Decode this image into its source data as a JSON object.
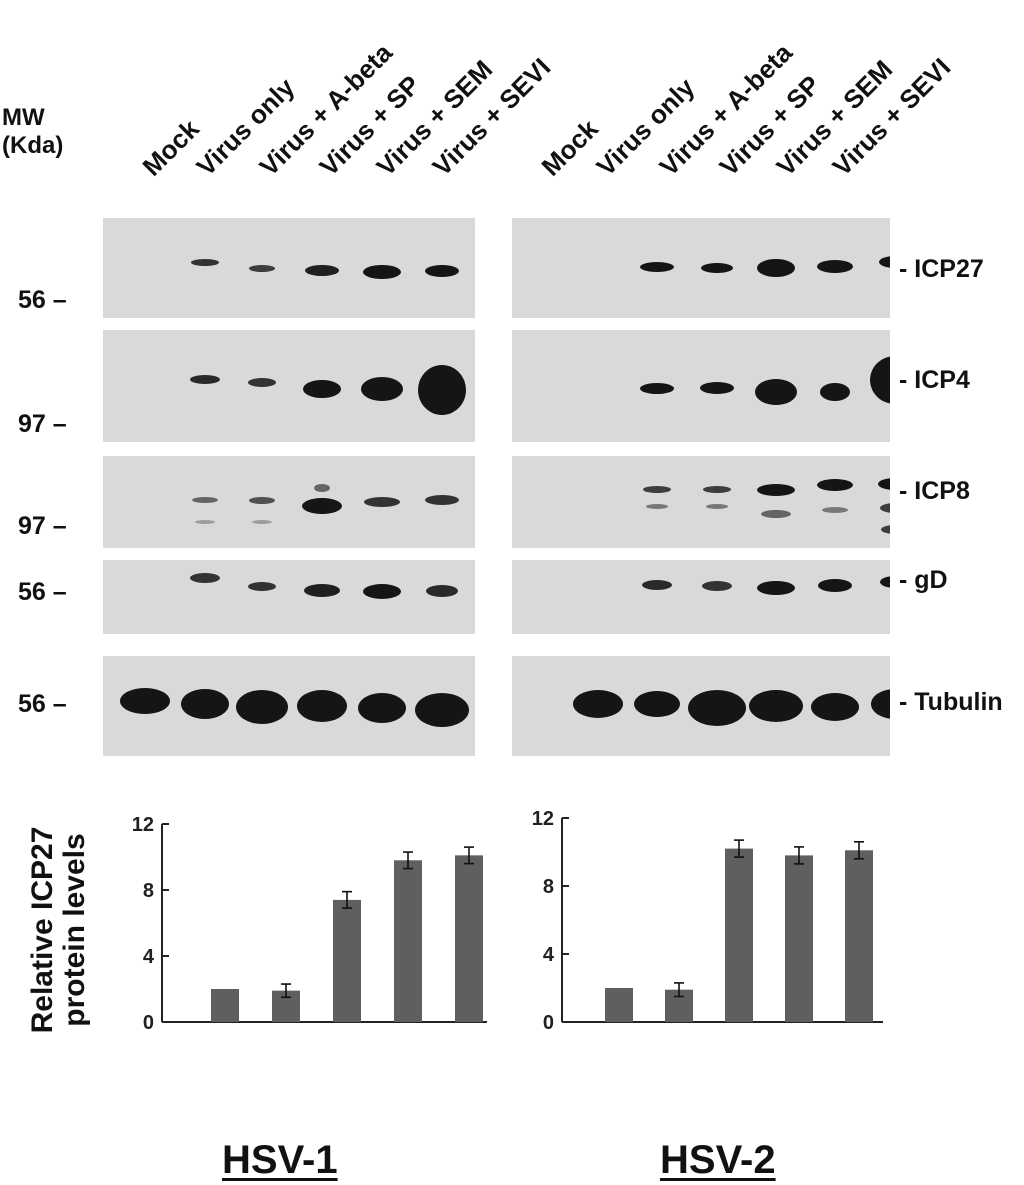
{
  "lanes": [
    "Mock",
    "Virus only",
    "Virus + A-beta",
    "Virus + SP",
    "Virus + SEM",
    "Virus + SEVI"
  ],
  "mw_header": {
    "line1": "MW",
    "line2": "(Kda)"
  },
  "mw_markers": [
    "56 –",
    "97 –",
    "97 –",
    "56 –",
    "56 –"
  ],
  "proteins": [
    "- ICP27",
    "- ICP4",
    "- ICP8",
    "- gD",
    "- Tubulin"
  ],
  "y_axis_title": {
    "line1": "Relative ICP27",
    "line2": "protein levels"
  },
  "virus_titles": [
    "HSV-1",
    "HSV-2"
  ],
  "blot_colors": {
    "background": "#d9d9d9",
    "band": "#151515"
  },
  "chart_data": [
    {
      "type": "bar",
      "title": "",
      "categories": [
        "Mock",
        "Virus only",
        "Virus + A-beta",
        "Virus + SP",
        "Virus + SEM",
        "Virus + SEVI"
      ],
      "series": [
        {
          "values": [
            0,
            2,
            1.9,
            7.4,
            9.8,
            10.1
          ]
        }
      ],
      "errors": [
        0,
        0,
        0.4,
        0.5,
        0.5,
        0.5
      ],
      "ylim": [
        0,
        12
      ],
      "yticks": [
        0,
        4,
        8,
        12
      ],
      "ylabel": "Relative ICP27 protein levels",
      "bar_color": "#5f5f5f"
    },
    {
      "type": "bar",
      "title": "",
      "categories": [
        "Mock",
        "Virus only",
        "Virus + A-beta",
        "Virus + SP",
        "Virus + SEM",
        "Virus + SEVI"
      ],
      "series": [
        {
          "values": [
            0,
            2,
            1.9,
            10.2,
            9.8,
            10.1
          ]
        }
      ],
      "errors": [
        0,
        0,
        0.4,
        0.5,
        0.5,
        0.5
      ],
      "ylim": [
        0,
        12
      ],
      "yticks": [
        0,
        4,
        8,
        12
      ],
      "ylabel": "Relative ICP27 protein levels",
      "bar_color": "#5f5f5f"
    }
  ]
}
